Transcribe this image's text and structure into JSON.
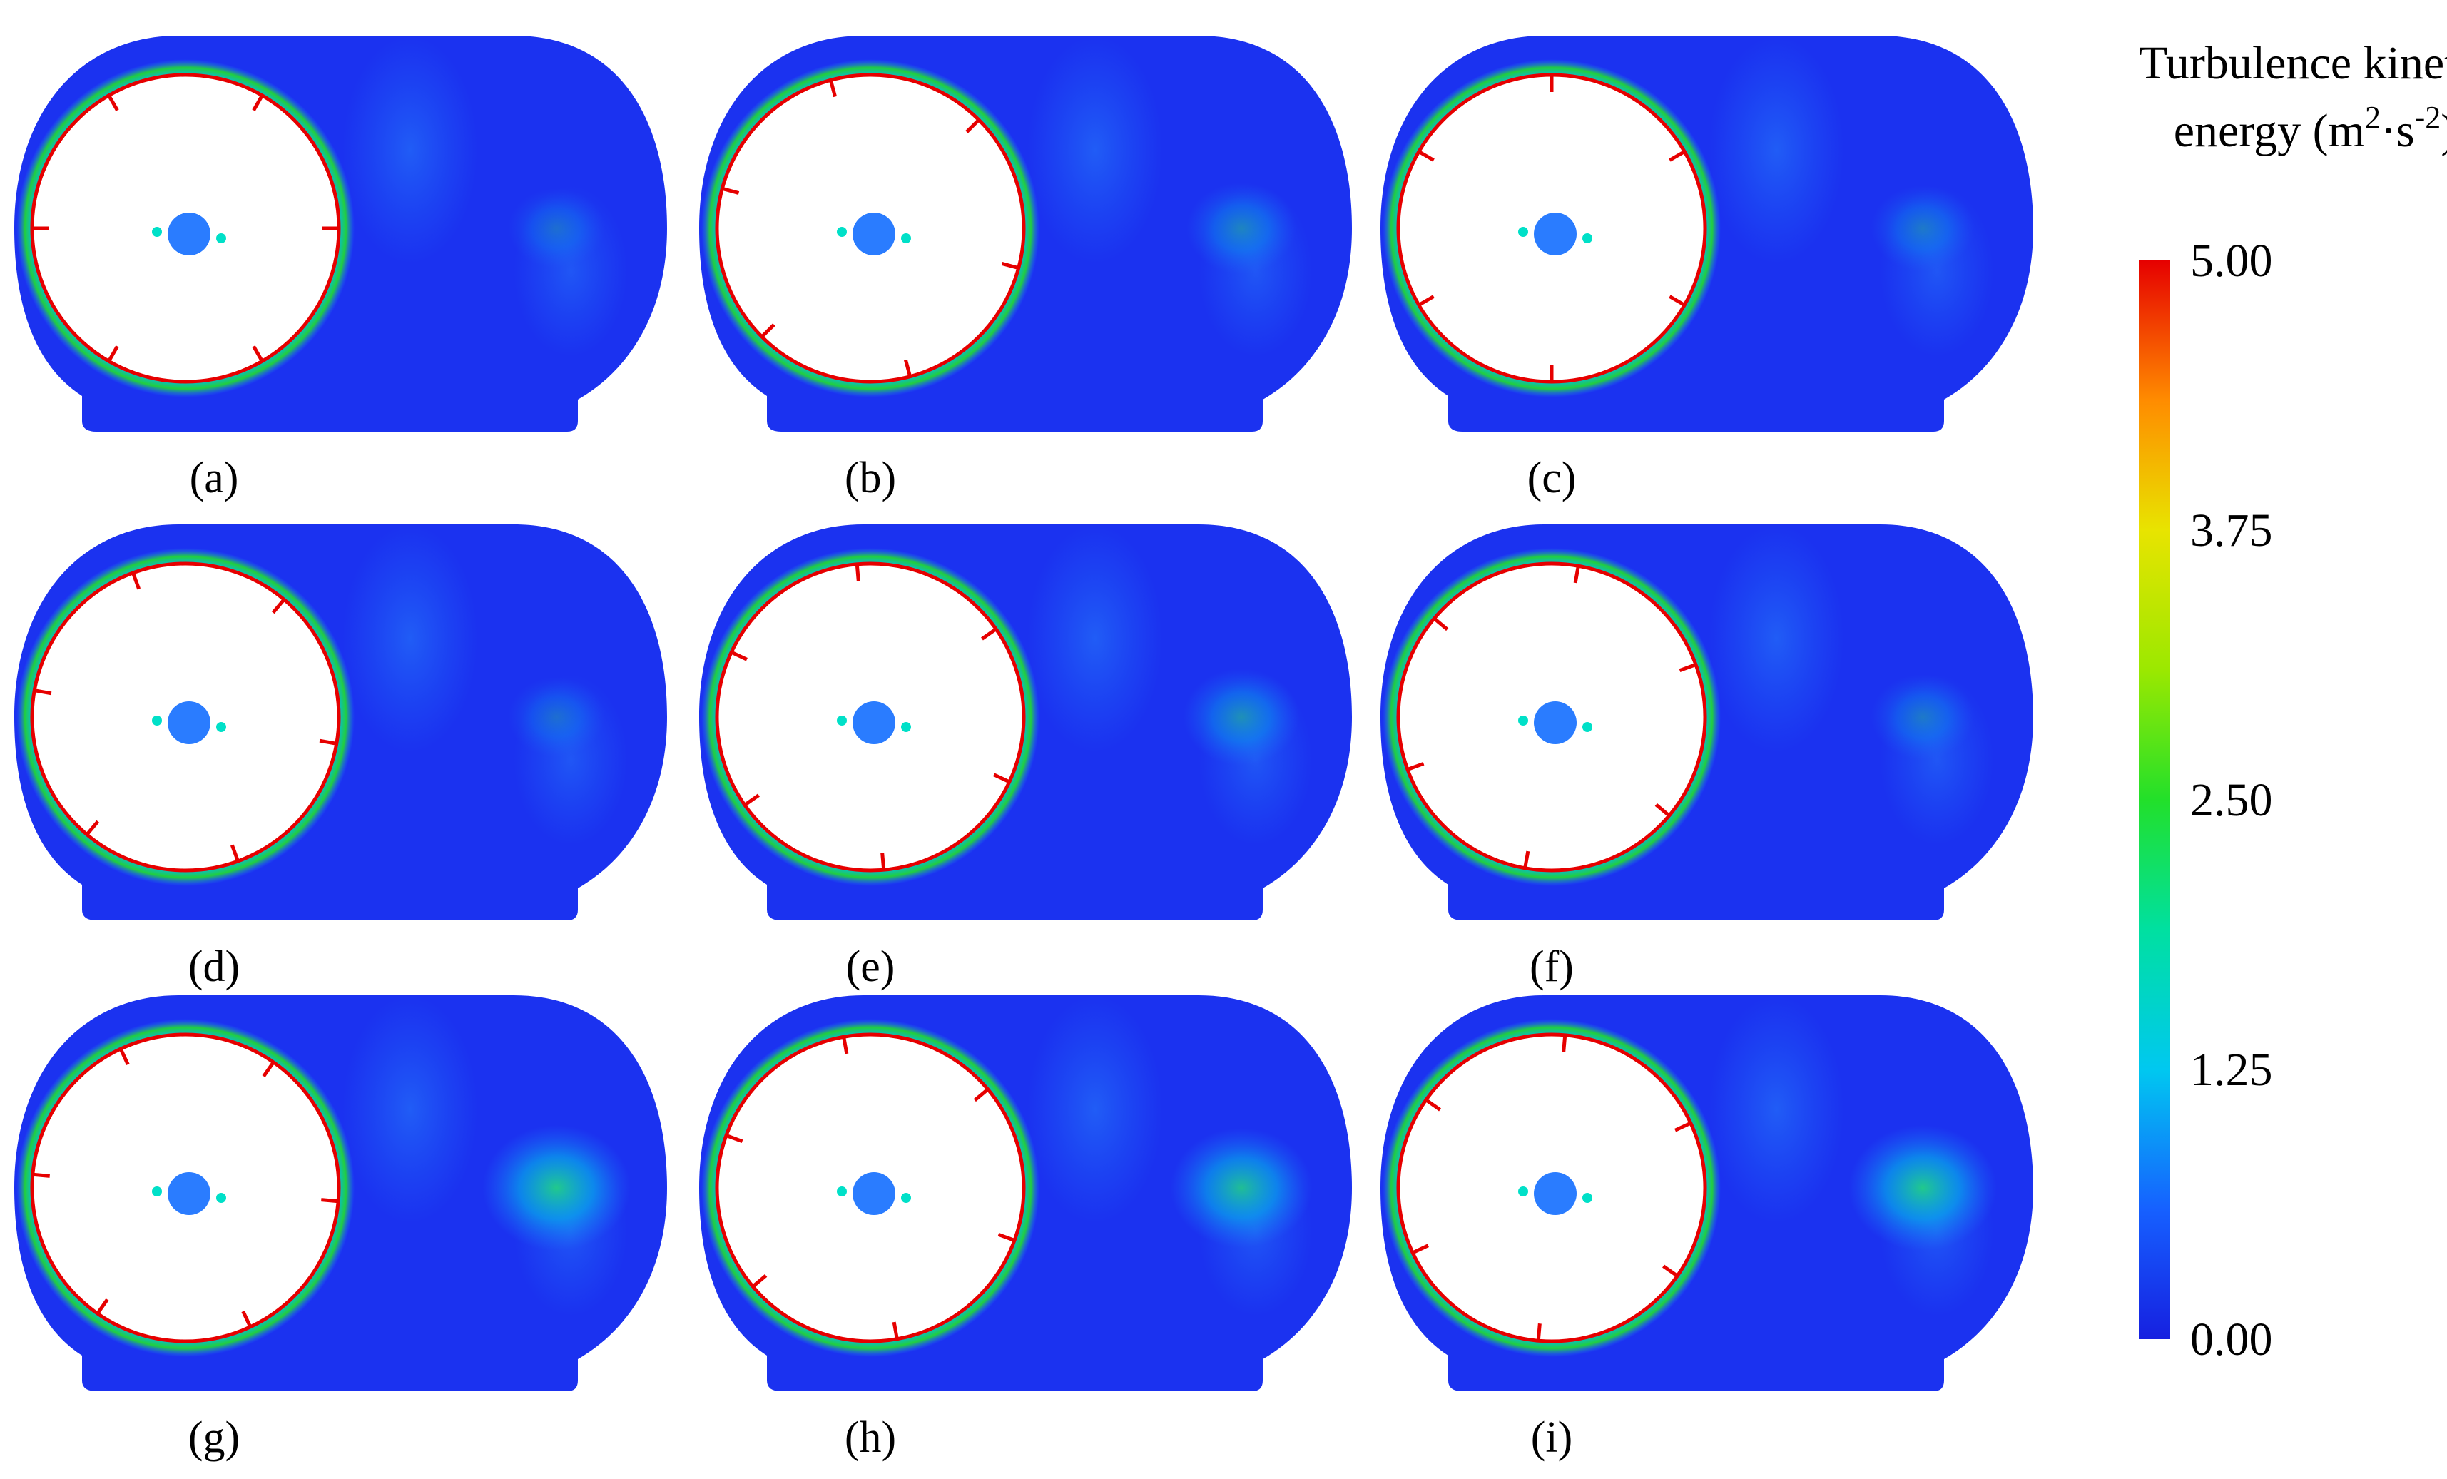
{
  "legend": {
    "title_line1": "Turbulence kinetic",
    "title_line2_prefix": "energy (m",
    "title_sup1": "2",
    "title_mid": "·s",
    "title_sup2": "-2",
    "title_suffix": ")",
    "ticks": [
      "5.00",
      "3.75",
      "2.50",
      "1.25",
      "0.00"
    ],
    "colors": {
      "high": "#e60000",
      "orange": "#ff8c00",
      "yellow": "#e8e400",
      "green": "#22e02a",
      "cyan": "#00d0e6",
      "blue_light": "#1e8cff",
      "low": "#1620e0"
    }
  },
  "panels": [
    {
      "label": "(a)",
      "blade_angle": 0,
      "hot_spot": 0.2
    },
    {
      "label": "(b)",
      "blade_angle": 15,
      "hot_spot": 0.3
    },
    {
      "label": "(c)",
      "blade_angle": 30,
      "hot_spot": 0.25
    },
    {
      "label": "(d)",
      "blade_angle": 10,
      "hot_spot": 0.2
    },
    {
      "label": "(e)",
      "blade_angle": 25,
      "hot_spot": 0.35
    },
    {
      "label": "(f)",
      "blade_angle": 40,
      "hot_spot": 0.25
    },
    {
      "label": "(g)",
      "blade_angle": 5,
      "hot_spot": 0.6
    },
    {
      "label": "(h)",
      "blade_angle": 20,
      "hot_spot": 0.55
    },
    {
      "label": "(i)",
      "blade_angle": 35,
      "hot_spot": 0.6
    }
  ]
}
